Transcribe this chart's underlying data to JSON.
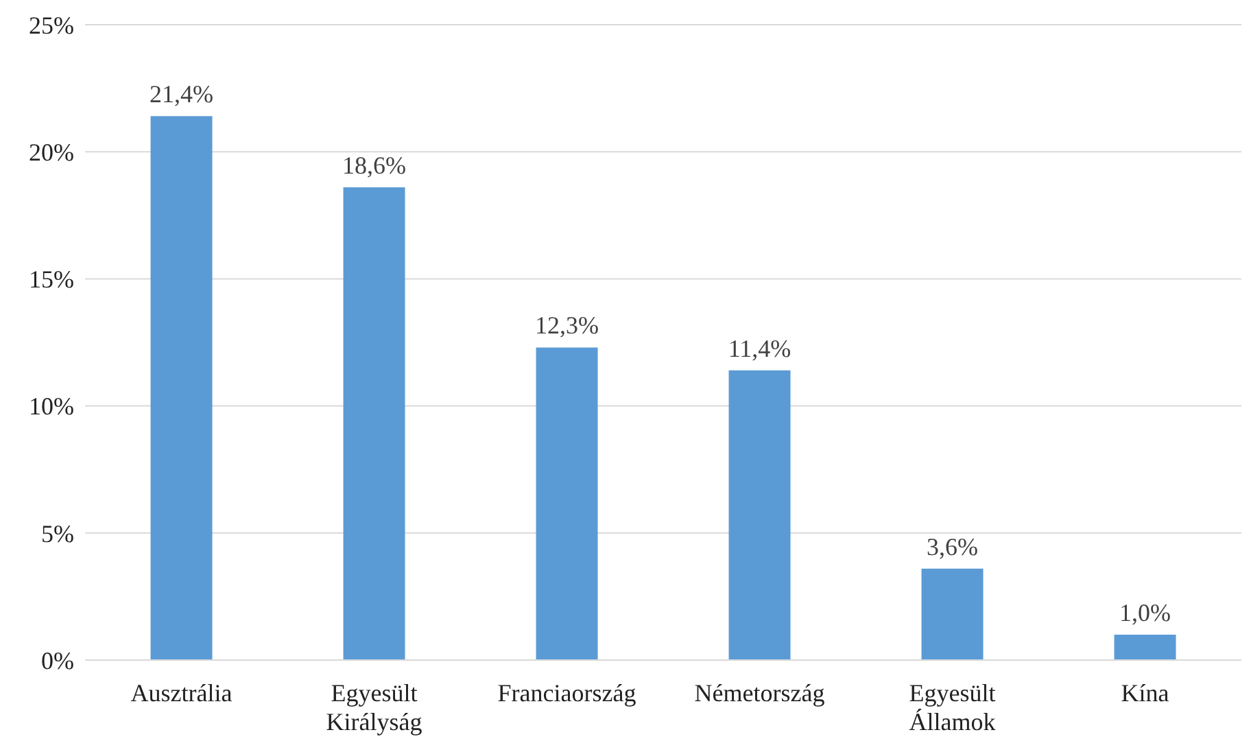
{
  "chart_data": {
    "type": "bar",
    "categories": [
      "Ausztrália",
      "Egyesült Királyság",
      "Franciaország",
      "Németország",
      "Egyesült Államok",
      "Kína"
    ],
    "values": [
      21.4,
      18.6,
      12.3,
      11.4,
      3.6,
      1.0
    ],
    "value_labels": [
      "21,4%",
      "18,6%",
      "12,3%",
      "11,4%",
      "3,6%",
      "1,0%"
    ],
    "color": "#5b9bd5",
    "ylim": [
      0,
      25
    ],
    "yticks": [
      {
        "value": 0,
        "label": "0%"
      },
      {
        "value": 5,
        "label": "5%"
      },
      {
        "value": 10,
        "label": "10%"
      },
      {
        "value": 15,
        "label": "15%"
      },
      {
        "value": 20,
        "label": "20%"
      },
      {
        "value": 25,
        "label": "25%"
      }
    ],
    "grid": "y",
    "legend": false
  }
}
